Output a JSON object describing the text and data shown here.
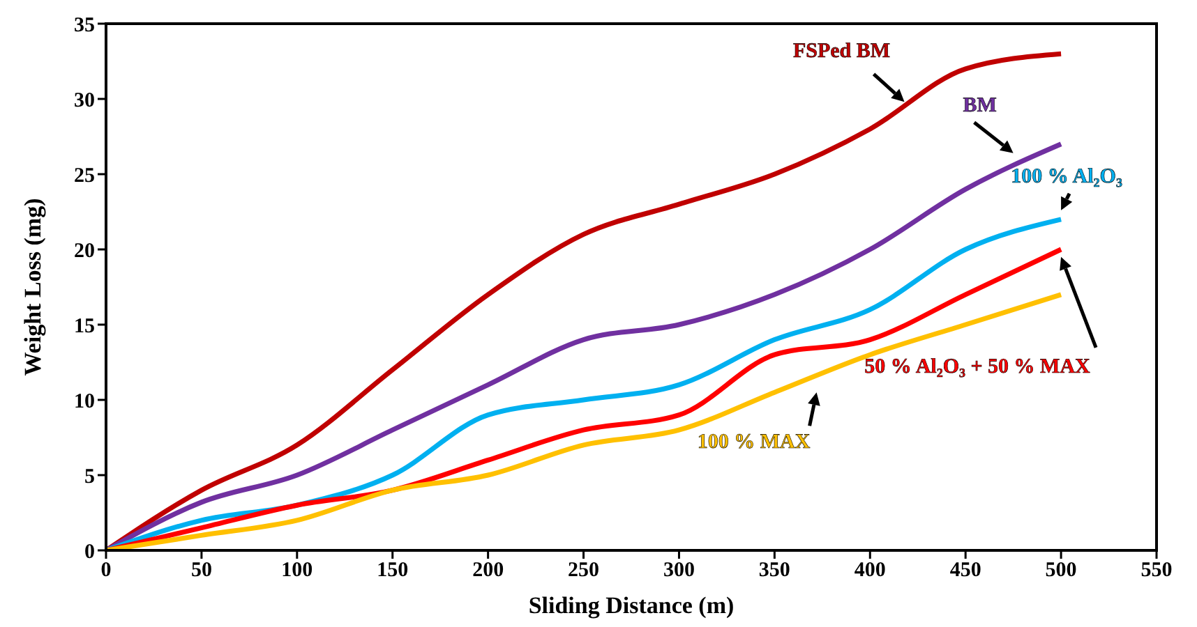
{
  "chart_data": {
    "type": "line",
    "xlabel": "Sliding Distance (m)",
    "ylabel": "Weight Loss (mg)",
    "x": [
      0,
      50,
      100,
      150,
      200,
      250,
      300,
      350,
      400,
      450,
      500
    ],
    "series": [
      {
        "name": "FSPed BM",
        "color": "#c00000",
        "values": [
          0,
          4,
          7,
          12,
          17,
          21,
          23,
          25,
          28,
          32,
          33
        ]
      },
      {
        "name": "BM",
        "color": "#7030a0",
        "values": [
          0,
          3.2,
          5,
          8,
          11,
          14,
          15,
          17,
          20,
          24,
          27
        ]
      },
      {
        "name": "100 % Al₂O₃",
        "color": "#00b0f0",
        "values": [
          0,
          2,
          3,
          5,
          9,
          10,
          11,
          14,
          16,
          20,
          22
        ]
      },
      {
        "name": "50 % Al₂O₃ + 50 % MAX",
        "color": "#ff0000",
        "values": [
          0,
          1.5,
          3,
          4,
          6,
          8,
          9,
          13,
          14,
          17,
          20
        ]
      },
      {
        "name": "100 % MAX",
        "color": "#ffc000",
        "values": [
          0,
          1,
          2,
          4,
          5,
          7,
          8,
          10.5,
          13,
          15,
          17
        ]
      }
    ],
    "xlim": [
      0,
      550
    ],
    "xticks": [
      0,
      50,
      100,
      150,
      200,
      250,
      300,
      350,
      400,
      450,
      500,
      550
    ],
    "ylim": [
      0,
      35
    ],
    "yticks": [
      0,
      5,
      10,
      15,
      20,
      25,
      30,
      35
    ],
    "grid": false,
    "legend": false,
    "marker": "none",
    "line_style": "solid"
  }
}
